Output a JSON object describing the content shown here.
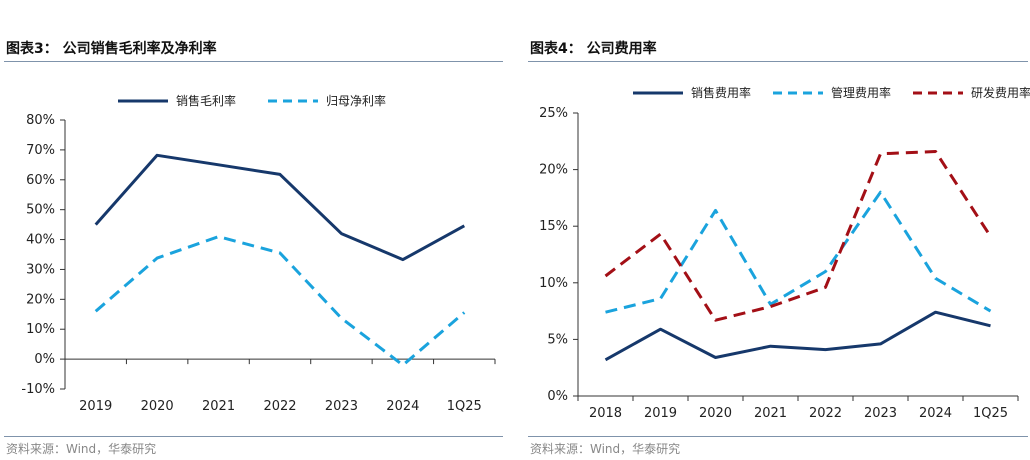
{
  "source_text": "资料来源：Wind，华泰研究",
  "chart_data": [
    {
      "type": "line",
      "title": "图表3：  公司销售毛利率及净利率",
      "categories": [
        "2019",
        "2020",
        "2021",
        "2022",
        "2023",
        "2024",
        "1Q25"
      ],
      "yticks": [
        "-10%",
        "0%",
        "10%",
        "20%",
        "30%",
        "40%",
        "50%",
        "60%",
        "70%",
        "80%"
      ],
      "ylim": [
        -10,
        80
      ],
      "legend_position": "top",
      "series": [
        {
          "name": "销售毛利率",
          "values": [
            45.0,
            68.2,
            65.0,
            61.8,
            42.0,
            33.3,
            44.6
          ],
          "color": "#16386b",
          "dashed": false
        },
        {
          "name": "归母净利率",
          "values": [
            16.0,
            33.8,
            41.0,
            35.5,
            13.7,
            -2.0,
            15.6
          ],
          "color": "#1aa3dd",
          "dashed": true
        }
      ]
    },
    {
      "type": "line",
      "title": "图表4：  公司费用率",
      "categories": [
        "2018",
        "2019",
        "2020",
        "2021",
        "2022",
        "2023",
        "2024",
        "1Q25"
      ],
      "yticks": [
        "0%",
        "5%",
        "10%",
        "15%",
        "20%",
        "25%"
      ],
      "ylim": [
        0,
        25
      ],
      "legend_position": "top",
      "series": [
        {
          "name": "销售费用率",
          "values": [
            3.2,
            5.9,
            3.4,
            4.4,
            4.1,
            4.6,
            7.4,
            6.2
          ],
          "color": "#16386b",
          "dashed": false
        },
        {
          "name": "管理费用率",
          "values": [
            7.4,
            8.6,
            16.4,
            8.1,
            11.0,
            18.0,
            10.4,
            7.5
          ],
          "color": "#1aa3dd",
          "dashed": true
        },
        {
          "name": "研发费用率",
          "values": [
            10.6,
            14.3,
            6.7,
            7.9,
            9.6,
            21.4,
            21.6,
            14.1
          ],
          "color": "#a30f16",
          "dashed": true
        }
      ]
    }
  ]
}
